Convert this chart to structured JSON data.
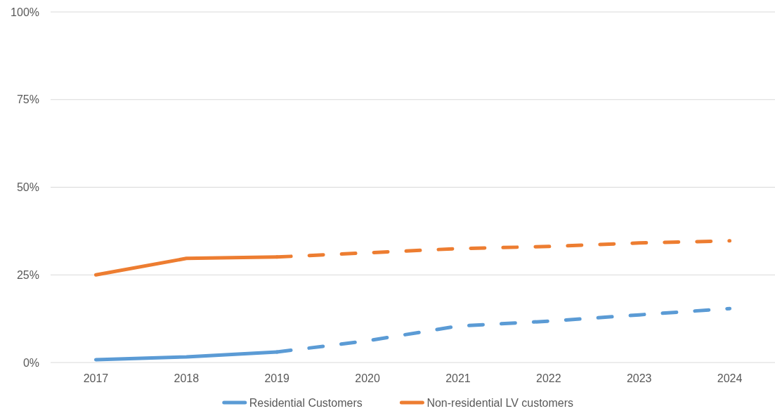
{
  "chart_data": {
    "type": "line",
    "categories": [
      "2017",
      "2018",
      "2019",
      "2020",
      "2021",
      "2022",
      "2023",
      "2024"
    ],
    "series": [
      {
        "name": "Residential Customers",
        "color": "#5b9bd5",
        "line_style": "solid",
        "values": [
          0.8,
          1.6,
          3.0,
          null,
          null,
          null,
          null,
          null
        ]
      },
      {
        "name": "Non-residential LV customers",
        "color": "#ed7d31",
        "line_style": "solid",
        "values": [
          25.0,
          29.7,
          30.1,
          null,
          null,
          null,
          null,
          null
        ]
      },
      {
        "color": "#5b9bd5",
        "line_style": "dashed",
        "values": [
          null,
          null,
          3.0,
          6.2,
          10.4,
          11.8,
          13.6,
          15.4
        ]
      },
      {
        "color": "#ed7d31",
        "line_style": "dashed",
        "values": [
          null,
          null,
          30.1,
          31.3,
          32.5,
          33.1,
          34.1,
          34.7
        ]
      }
    ],
    "ylim": [
      0,
      100
    ],
    "yticks": [
      {
        "value": 0,
        "label": "0%"
      },
      {
        "value": 25,
        "label": "25%"
      },
      {
        "value": 50,
        "label": "50%"
      },
      {
        "value": 75,
        "label": "75%"
      },
      {
        "value": 100,
        "label": "100%"
      }
    ],
    "grid": "y",
    "legend": "bottom"
  }
}
